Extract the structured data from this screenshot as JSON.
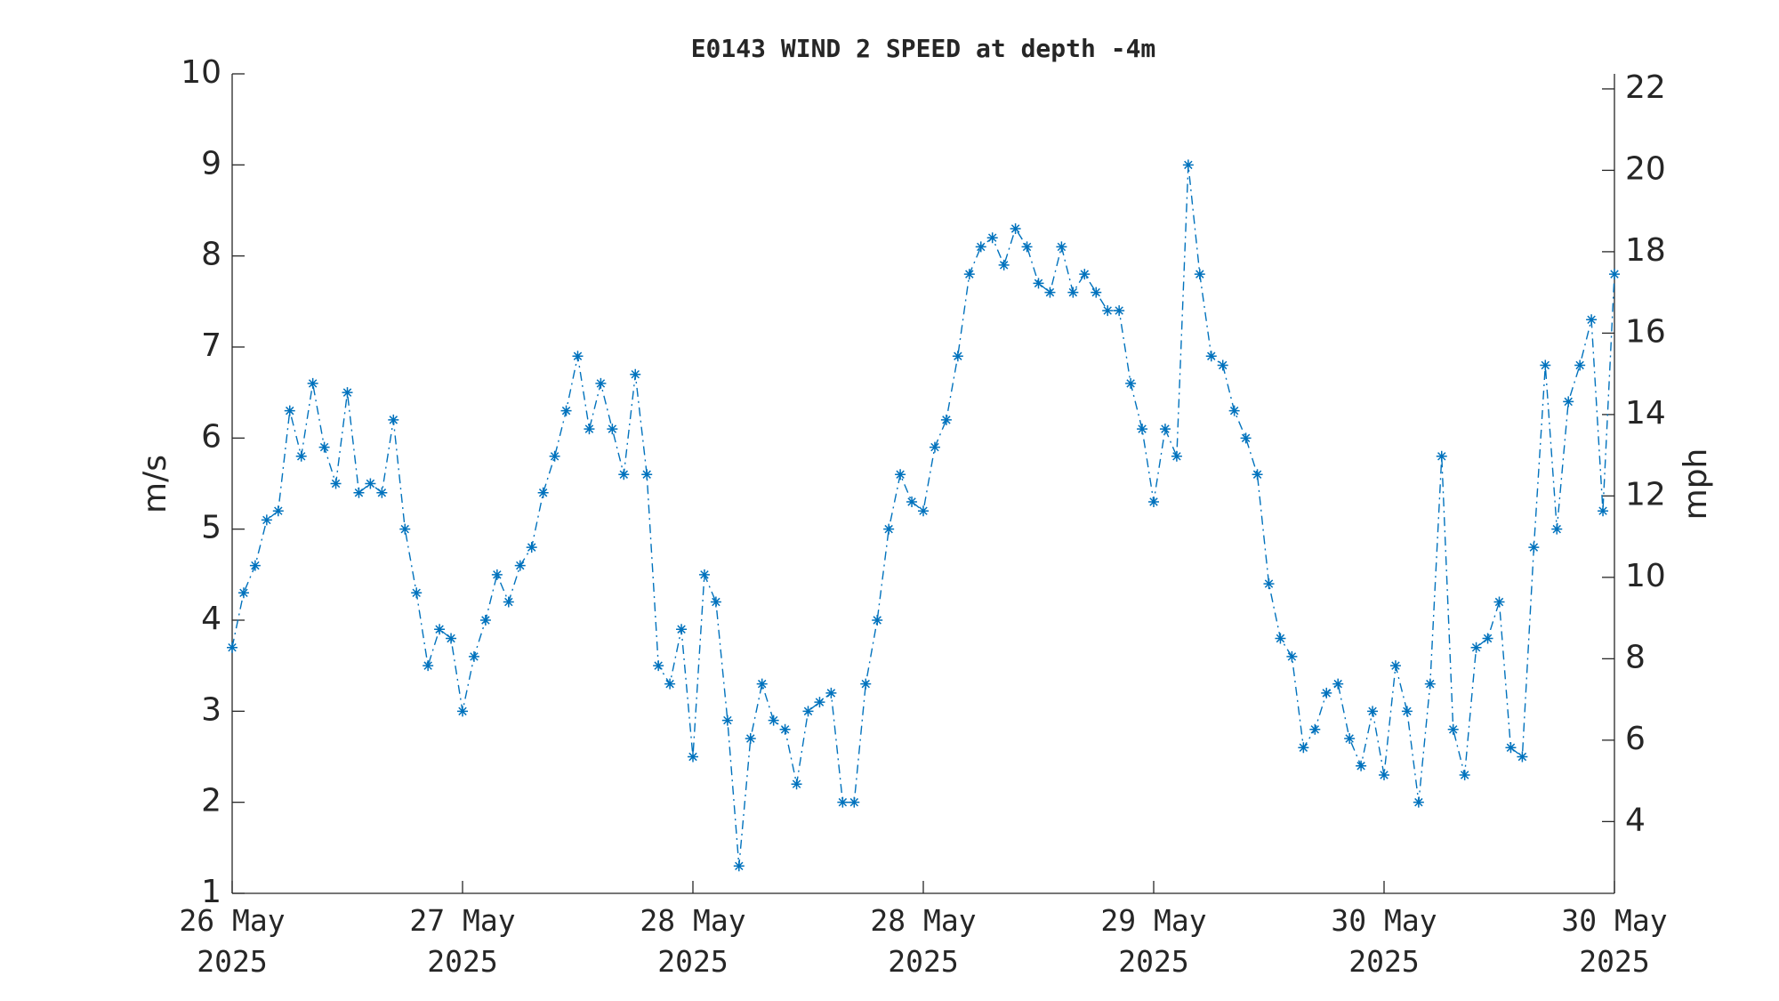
{
  "chart_data": {
    "type": "line",
    "title": "E0143 WIND 2 SPEED at depth -4m",
    "ylabel": "m/s",
    "y2label": "mph",
    "color": "#0072bd",
    "marker": "*",
    "linestyle": "-.",
    "x": [
      0,
      0.05,
      0.1,
      0.15,
      0.2,
      0.25,
      0.3,
      0.35,
      0.4,
      0.45,
      0.5,
      0.55,
      0.6,
      0.65,
      0.7,
      0.75,
      0.8,
      0.85,
      0.9,
      0.95,
      1,
      1.05,
      1.1,
      1.15,
      1.2,
      1.25,
      1.3,
      1.35,
      1.4,
      1.45,
      1.5,
      1.55,
      1.6,
      1.65,
      1.7,
      1.75,
      1.8,
      1.85,
      1.9,
      1.95,
      2,
      2.05,
      2.1,
      2.15,
      2.2,
      2.25,
      2.3,
      2.35,
      2.4,
      2.45,
      2.5,
      2.55,
      2.6,
      2.65,
      2.7,
      2.75,
      2.8,
      2.85,
      2.9,
      2.95,
      3,
      3.05,
      3.1,
      3.15,
      3.2,
      3.25,
      3.3,
      3.35,
      3.4,
      3.45,
      3.5,
      3.55,
      3.6,
      3.65,
      3.7,
      3.75,
      3.8,
      3.85,
      3.9,
      3.95,
      4,
      4.05,
      4.1,
      4.15,
      4.2,
      4.25,
      4.3,
      4.35,
      4.4,
      4.45,
      4.5,
      4.55,
      4.6,
      4.65,
      4.7,
      4.75,
      4.8,
      4.85,
      4.9,
      4.95,
      5,
      5.05,
      5.1,
      5.15,
      5.2,
      5.25,
      5.3,
      5.35,
      5.4,
      5.45,
      5.5,
      5.55,
      5.6,
      5.65,
      5.7,
      5.75,
      5.8,
      5.85,
      5.9,
      5.95,
      6
    ],
    "values": [
      3.7,
      4.3,
      4.6,
      5.1,
      5.2,
      6.3,
      5.8,
      6.6,
      5.9,
      5.5,
      6.5,
      5.4,
      5.5,
      5.4,
      6.2,
      5.0,
      4.3,
      3.5,
      3.9,
      3.8,
      3.0,
      3.6,
      4.0,
      4.5,
      4.2,
      4.6,
      4.8,
      5.4,
      5.8,
      6.3,
      6.9,
      6.1,
      6.6,
      6.1,
      5.6,
      6.7,
      5.6,
      3.5,
      3.3,
      3.9,
      2.5,
      4.5,
      4.2,
      2.9,
      1.3,
      2.7,
      3.3,
      2.9,
      2.8,
      2.2,
      3.0,
      3.1,
      3.2,
      2.0,
      2.0,
      3.3,
      4.0,
      5.0,
      5.6,
      5.3,
      5.2,
      5.9,
      6.2,
      6.9,
      7.8,
      8.1,
      8.2,
      7.9,
      8.3,
      8.1,
      7.7,
      7.6,
      8.1,
      7.6,
      7.8,
      7.6,
      7.4,
      7.4,
      6.6,
      6.1,
      5.3,
      6.1,
      5.8,
      9.0,
      7.8,
      6.9,
      6.8,
      6.3,
      6.0,
      5.6,
      4.4,
      3.8,
      3.6,
      2.6,
      2.8,
      3.2,
      3.3,
      2.7,
      2.4,
      3.0,
      2.3,
      3.5,
      3.0,
      2.0,
      3.3,
      5.8,
      2.8,
      2.3,
      3.7,
      3.8,
      4.2,
      2.6,
      2.5,
      4.8,
      6.8,
      5.0,
      6.4,
      6.8,
      7.3,
      5.2,
      7.8
    ],
    "xlim": [
      0,
      6
    ],
    "xticks": [
      {
        "value": 0,
        "label": "26 May 2025"
      },
      {
        "value": 1,
        "label": "27 May 2025"
      },
      {
        "value": 2,
        "label": "28 May 2025"
      },
      {
        "value": 3,
        "label": "28 May 2025"
      },
      {
        "value": 4,
        "label": "29 May 2025"
      },
      {
        "value": 5,
        "label": "30 May 2025"
      },
      {
        "value": 6,
        "label": "30 May 2025"
      }
    ],
    "ylim": [
      1,
      10
    ],
    "yticks": [
      1,
      2,
      3,
      4,
      5,
      6,
      7,
      8,
      9,
      10
    ],
    "y2lim": [
      2.237,
      22.37
    ],
    "y2ticks": [
      4,
      6,
      8,
      10,
      12,
      14,
      16,
      18,
      20,
      22
    ]
  }
}
